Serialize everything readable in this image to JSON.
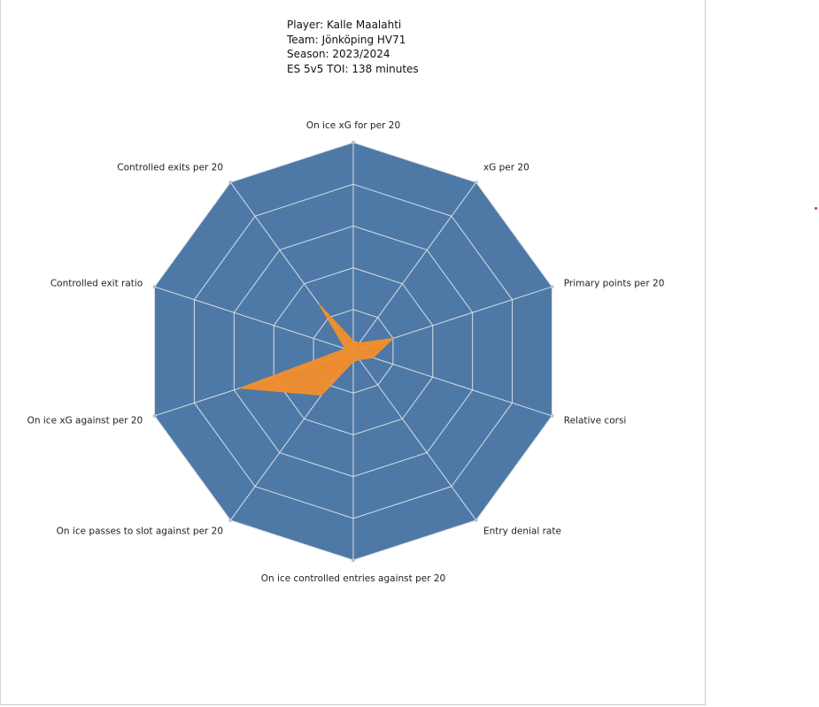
{
  "header": {
    "player": "Player: Kalle Maalahti",
    "team": "Team: Jönköping HV71",
    "season": "Season: 2023/2024",
    "toi": "ES 5v5 TOI: 138 minutes"
  },
  "colors": {
    "web_fill": "#4e79a7",
    "player_fill": "#f28e2b",
    "grid_line": "#d9dde3",
    "marker": "#c0392b"
  },
  "chart_data": {
    "type": "radar",
    "axes": [
      "On ice xG for per 20",
      "xG per 20",
      "Primary points per 20",
      "Relative corsi",
      "Entry denial rate",
      "On ice controlled entries against per 20",
      "On ice passes to slot against per 20",
      "On ice xG against per 20",
      "Controlled exit ratio",
      "Controlled exits per 20"
    ],
    "values": [
      0.05,
      0.05,
      0.2,
      0.1,
      0.05,
      0.05,
      0.26,
      0.57,
      0.04,
      0.28
    ],
    "range": [
      0,
      1
    ],
    "rings": 5,
    "grid": true
  }
}
